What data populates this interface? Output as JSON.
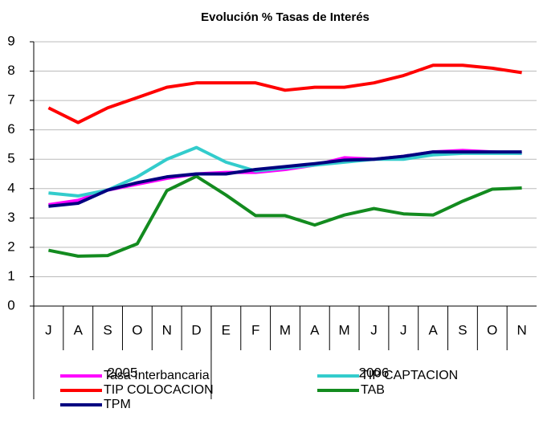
{
  "chart_data": {
    "type": "line",
    "title": "Evolución % Tasas de Interés",
    "categories": [
      "J",
      "A",
      "S",
      "O",
      "N",
      "D",
      "E",
      "F",
      "M",
      "A",
      "M",
      "J",
      "J",
      "A",
      "S",
      "O",
      "N"
    ],
    "category_groups": [
      {
        "label": "2005",
        "size": 6
      },
      {
        "label": "2006",
        "size": 11
      }
    ],
    "ylim": [
      0,
      9
    ],
    "yticks": [
      0,
      1,
      2,
      3,
      4,
      5,
      6,
      7,
      8,
      9
    ],
    "grid": true,
    "series": [
      {
        "name": "Tasa Interbancaria",
        "color": "#ff00ff",
        "values": [
          3.45,
          3.6,
          3.95,
          4.15,
          4.35,
          4.5,
          4.55,
          4.55,
          4.65,
          4.8,
          5.05,
          5.0,
          5.1,
          5.25,
          5.3,
          5.25,
          5.2
        ]
      },
      {
        "name": "TIP CAPTACION",
        "color": "#33cccc",
        "values": [
          3.85,
          3.75,
          3.95,
          4.4,
          5.0,
          5.4,
          4.9,
          4.6,
          4.7,
          4.8,
          4.9,
          5.0,
          5.0,
          5.15,
          5.2,
          5.2,
          5.2
        ]
      },
      {
        "name": "TIP COLOCACION",
        "color": "#ff0000",
        "values": [
          6.75,
          6.25,
          6.75,
          7.1,
          7.45,
          7.6,
          7.6,
          7.6,
          7.35,
          7.45,
          7.45,
          7.6,
          7.85,
          8.2,
          8.2,
          8.1,
          7.95
        ]
      },
      {
        "name": "TAB",
        "color": "#138b1f",
        "values": [
          1.9,
          1.7,
          1.72,
          2.12,
          3.93,
          4.42,
          3.78,
          3.08,
          3.08,
          2.76,
          3.1,
          3.32,
          3.14,
          3.1,
          3.57,
          3.98,
          4.02
        ]
      },
      {
        "name": "TPM",
        "color": "#000080",
        "values": [
          3.4,
          3.5,
          3.95,
          4.2,
          4.4,
          4.5,
          4.5,
          4.65,
          4.75,
          4.85,
          4.97,
          5.0,
          5.1,
          5.25,
          5.25,
          5.25,
          5.25
        ]
      }
    ]
  }
}
